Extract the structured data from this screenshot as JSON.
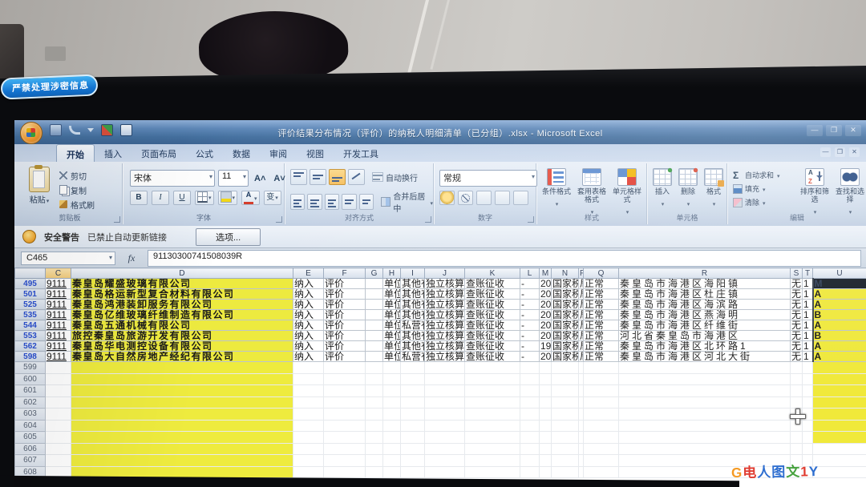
{
  "photo": {
    "badge_text": "严禁处理涉密信息",
    "watermark_glyphs": [
      {
        "t": "G",
        "c": "#f59a23"
      },
      {
        "t": "电",
        "c": "#e03c31"
      },
      {
        "t": "人",
        "c": "#2f6fd0"
      },
      {
        "t": "图",
        "c": "#2f6fd0"
      },
      {
        "t": "文",
        "c": "#47a23f"
      },
      {
        "t": "1",
        "c": "#e03c31"
      },
      {
        "t": "Y",
        "c": "#2f6fd0"
      }
    ]
  },
  "titlebar": {
    "title": "评价结果分布情况（评价）的纳税人明细清单（已分组）.xlsx - Microsoft Excel"
  },
  "tabs": [
    {
      "label": "开始",
      "active": true
    },
    {
      "label": "插入",
      "active": false
    },
    {
      "label": "页面布局",
      "active": false
    },
    {
      "label": "公式",
      "active": false
    },
    {
      "label": "数据",
      "active": false
    },
    {
      "label": "审阅",
      "active": false
    },
    {
      "label": "视图",
      "active": false
    },
    {
      "label": "开发工具",
      "active": false
    }
  ],
  "ribbon": {
    "clipboard": {
      "paste": "粘贴",
      "cut": "剪切",
      "copy": "复制",
      "format_painter": "格式刷",
      "group_label": "剪贴板"
    },
    "font": {
      "family": "宋体",
      "size": "11",
      "bold": "B",
      "italic": "I",
      "underline": "U",
      "phonetic": "变",
      "group_label": "字体"
    },
    "alignment": {
      "wrap_text": "自动换行",
      "merge_center": "合并后居中",
      "group_label": "对齐方式"
    },
    "number": {
      "format": "常规",
      "group_label": "数字"
    },
    "styles": {
      "conditional": "条件格式",
      "format_table": "套用表格格式",
      "cell_styles": "单元格样式",
      "group_label": "样式"
    },
    "cells": {
      "insert": "插入",
      "delete": "删除",
      "format": "格式",
      "group_label": "单元格"
    },
    "editing": {
      "autosum": "自动求和",
      "fill": "填充",
      "clear": "清除",
      "sort": "排序和筛选",
      "find": "查找和选择",
      "group_label": "编辑"
    }
  },
  "security_bar": {
    "label": "安全警告",
    "message": "已禁止自动更新链接",
    "options_button": "选项..."
  },
  "formula_bar": {
    "name_box": "C465",
    "fx": "fx",
    "value": "91130300741508039R"
  },
  "sheet": {
    "column_headers": [
      "C",
      "D",
      "E",
      "F",
      "G",
      "H",
      "I",
      "J",
      "K",
      "L",
      "M",
      "N",
      "P",
      "Q",
      "R",
      "S",
      "T",
      "U"
    ],
    "data_rows": [
      {
        "num": "495",
        "c": "9111",
        "d": "秦皇岛耀盛玻璃有限公司",
        "e": "纳入",
        "f": "评价",
        "g": "",
        "h": "单位",
        "i": "其他有",
        "j": "独立核算",
        "k": "查账征收",
        "l": "-",
        "m": "20",
        "n": "国家税务",
        "p": "局",
        "q": "正常",
        "r": "秦皇岛市海港区海阳镇",
        "s": "无",
        "t": "1",
        "u": "M",
        "u_dark": true
      },
      {
        "num": "501",
        "c": "9111",
        "d": "秦皇岛格运新型复合材料有限公司",
        "e": "纳入",
        "f": "评价",
        "g": "",
        "h": "单位",
        "i": "其他有",
        "j": "独立核算",
        "k": "查账征收",
        "l": "-",
        "m": "20",
        "n": "国家税务",
        "p": "局",
        "q": "正常",
        "r": "秦皇岛市海港区杜庄镇",
        "s": "无",
        "t": "1",
        "u": "A",
        "u_dark": false
      },
      {
        "num": "525",
        "c": "9111",
        "d": "秦皇岛鸿港装卸服务有限公司",
        "e": "纳入",
        "f": "评价",
        "g": "",
        "h": "单位",
        "i": "其他有",
        "j": "独立核算",
        "k": "查账征收",
        "l": "-",
        "m": "20",
        "n": "国家税务",
        "p": "局",
        "q": "正常",
        "r": "秦皇岛市海港区海滨路",
        "s": "无",
        "t": "1",
        "u": "A",
        "u_dark": false
      },
      {
        "num": "535",
        "c": "9111",
        "d": "秦皇岛亿维玻璃纤维制造有限公司",
        "e": "纳入",
        "f": "评价",
        "g": "",
        "h": "单位",
        "i": "其他有",
        "j": "独立核算",
        "k": "查账征收",
        "l": "-",
        "m": "20",
        "n": "国家税务",
        "p": "局",
        "q": "正常",
        "r": "秦皇岛市海港区燕海明",
        "s": "无",
        "t": "1",
        "u": "B",
        "u_dark": false
      },
      {
        "num": "544",
        "c": "9111",
        "d": "秦皇岛五通机械有限公司",
        "e": "纳入",
        "f": "评价",
        "g": "",
        "h": "单位",
        "i": "私营有",
        "j": "独立核算",
        "k": "查账征收",
        "l": "-",
        "m": "20",
        "n": "国家税务",
        "p": "局",
        "q": "正常",
        "r": "秦皇岛市海港区纤维街",
        "s": "无",
        "t": "1",
        "u": "A",
        "u_dark": false
      },
      {
        "num": "553",
        "c": "9111",
        "d": "旅控秦皇岛旅游开发有限公司",
        "e": "纳入",
        "f": "评价",
        "g": "",
        "h": "单位",
        "i": "其他有",
        "j": "独立核算",
        "k": "查账征收",
        "l": "-",
        "m": "20",
        "n": "国家税务",
        "p": "局",
        "q": "正常",
        "r": "河北省秦皇岛市海港区",
        "s": "无",
        "t": "1",
        "u": "B",
        "u_dark": false
      },
      {
        "num": "562",
        "c": "9111",
        "d": "秦皇岛华电测控设备有限公司",
        "e": "纳入",
        "f": "评价",
        "g": "",
        "h": "单位",
        "i": "其他有",
        "j": "独立核算",
        "k": "查账征收",
        "l": "-",
        "m": "19",
        "n": "国家税务",
        "p": "局",
        "q": "正常",
        "r": "秦皇岛市海港区北环路1",
        "s": "无",
        "t": "1",
        "u": "A",
        "u_dark": false
      },
      {
        "num": "598",
        "c": "9111",
        "d": "秦皇岛大自然房地产经纪有限公司",
        "e": "纳入",
        "f": "评价",
        "g": "",
        "h": "单位",
        "i": "私营有",
        "j": "独立核算",
        "k": "查账征收",
        "l": "-",
        "m": "20",
        "n": "国家税务",
        "p": "局",
        "q": "正常",
        "r": "秦皇岛市海港区河北大街",
        "s": "无",
        "t": "1",
        "u": "A",
        "u_dark": false
      }
    ],
    "empty_row_numbers": [
      "599",
      "600",
      "601",
      "602",
      "603",
      "604",
      "605",
      "606",
      "607",
      "608"
    ],
    "yellow_empty_u_rows": 7
  },
  "colors": {
    "highlight_yellow": "#edea3f",
    "title_blue": "#44709f",
    "badge_blue": "#1373cf"
  }
}
